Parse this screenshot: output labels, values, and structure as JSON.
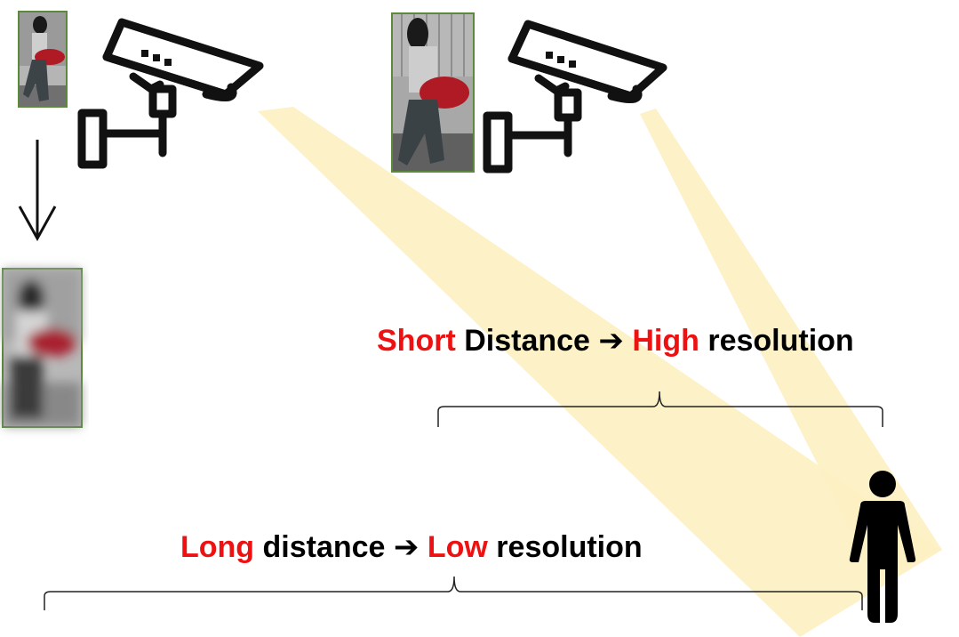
{
  "labels": {
    "short": {
      "word1": "Short",
      "word2": " Distance ",
      "arrow": "➔",
      "word3": " High",
      "word4": " resolution"
    },
    "long": {
      "word1": "Long",
      "word2": " distance ",
      "arrow": "➔",
      "word3": " Low",
      "word4": " resolution"
    }
  },
  "colors": {
    "highlight_text": "#ee1111",
    "beam": "#fdf0c4",
    "photo_border": "#5a8a3a",
    "outline": "#111111"
  },
  "icons": [
    "camera-far-icon",
    "camera-near-icon",
    "person-icon",
    "down-arrow-icon"
  ]
}
